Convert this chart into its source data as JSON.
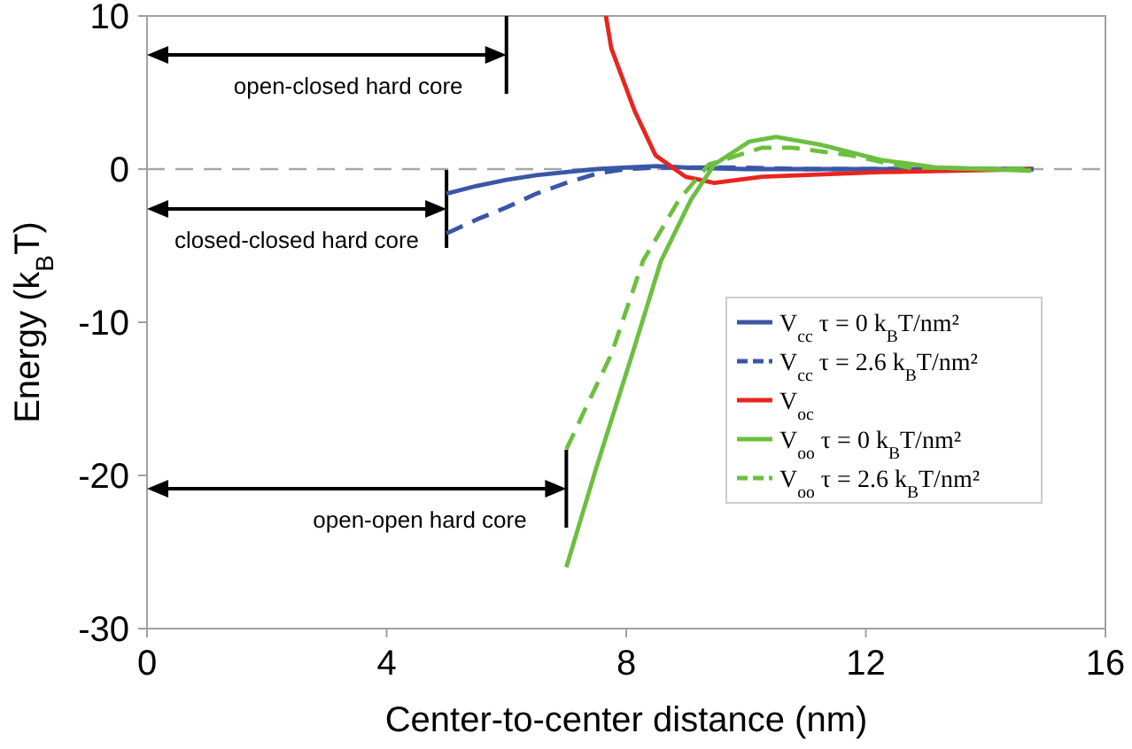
{
  "chart_data": {
    "type": "line",
    "xlabel": "Center-to-center distance (nm)",
    "ylabel": "Energy (k$_{B}$T)",
    "xlim": [
      0,
      16
    ],
    "xticks": [
      0,
      4,
      8,
      12,
      16
    ],
    "ylim": [
      -30,
      10
    ],
    "yticks": [
      -30,
      -20,
      -10,
      0,
      10
    ],
    "grid": false,
    "legend": "right",
    "marker": "none",
    "ref_lines": [
      {
        "axis": "y",
        "value": 0,
        "color": "#a6a6a6",
        "line_style": "dashed"
      },
      {
        "axis": "x",
        "value": 6,
        "label": "open-closed hard core",
        "color": "#000000"
      },
      {
        "axis": "x",
        "value": 5,
        "label": "closed-closed hard core",
        "color": "#000000"
      },
      {
        "axis": "x",
        "value": 7,
        "label": "open-open hard core",
        "color": "#000000"
      }
    ],
    "series": [
      {
        "name": "V$_{cc}$ τ = 0 k$_{B}$T/nm²",
        "color": "#3a56a8",
        "line_style": "solid",
        "x": [
          5,
          5.5,
          6,
          6.5,
          7,
          7.5,
          8,
          8.5,
          9,
          10,
          12,
          14,
          14.8
        ],
        "values": [
          -1.6,
          -1.1,
          -0.7,
          -0.4,
          -0.2,
          0,
          0.1,
          0.2,
          0.1,
          0,
          0,
          0,
          0
        ]
      },
      {
        "name": "V$_{cc}$ τ = 2.6 k$_{B}$T/nm²",
        "color": "#3a56a8",
        "line_style": "dashed",
        "x": [
          5,
          5.5,
          6,
          6.5,
          7,
          7.5,
          8,
          8.5,
          9,
          10,
          11,
          12,
          14,
          14.8
        ],
        "values": [
          -4.2,
          -3.3,
          -2.5,
          -1.6,
          -0.9,
          -0.3,
          0,
          0.1,
          0.1,
          0.1,
          0,
          0,
          0,
          0
        ]
      },
      {
        "name": "V$_{oc}$",
        "color": "#e8251f",
        "line_style": "solid",
        "x": [
          7.66,
          7.75,
          8.14,
          8.49,
          8.99,
          9.47,
          10.27,
          12.25,
          14.76
        ],
        "values": [
          10,
          7.9,
          3.8,
          0.9,
          -0.5,
          -0.9,
          -0.5,
          -0.2,
          0
        ]
      },
      {
        "name": "V$_{oo}$ τ = 0 k$_{B}$T/nm²",
        "color": "#6cbf3f",
        "line_style": "solid",
        "x": [
          7,
          7.5,
          8.1,
          8.58,
          9.08,
          9.47,
          10.06,
          10.5,
          11.24,
          12.25,
          13.2,
          14.76
        ],
        "values": [
          -26,
          -19.5,
          -12.1,
          -6,
          -2,
          0.3,
          1.8,
          2.1,
          1.6,
          0.6,
          0.1,
          -0.1
        ]
      },
      {
        "name": "V$_{oo}$ τ = 2.6 k$_{B}$T/nm²",
        "color": "#6cbf3f",
        "line_style": "dashed",
        "x": [
          7,
          7.3,
          7.75,
          8.28,
          8.88,
          9.38,
          10.27,
          10.77,
          11.75,
          12.7,
          14.76
        ],
        "values": [
          -18.3,
          -15.8,
          -12.1,
          -6,
          -2,
          0.3,
          1.4,
          1.4,
          0.9,
          0.1,
          0
        ]
      }
    ]
  }
}
